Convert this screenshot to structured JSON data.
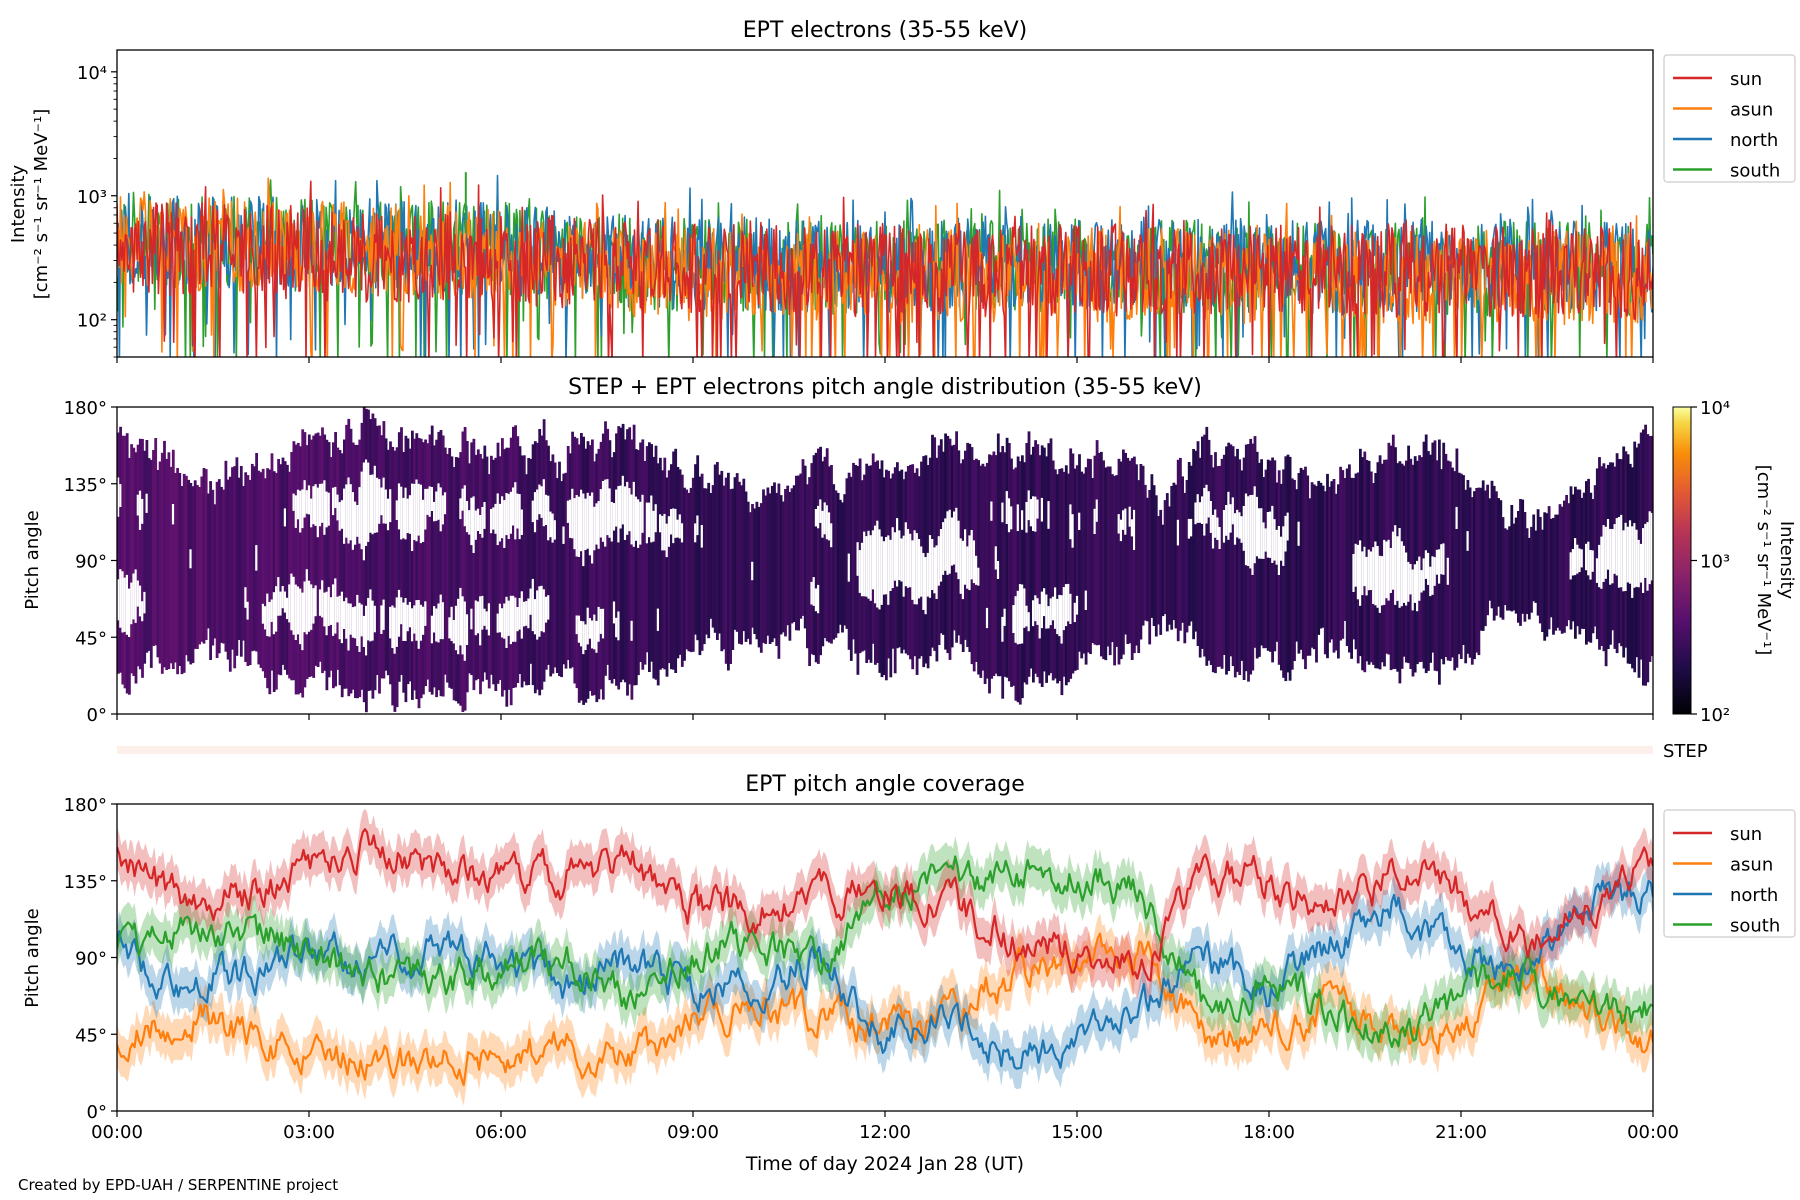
{
  "footer": {
    "credit": "Created by EPD-UAH / SERPENTINE project"
  },
  "colors": {
    "sun": "#d62728",
    "asun": "#ff7f0e",
    "north": "#1f77b4",
    "south": "#2ca02c"
  },
  "chart_data": [
    {
      "type": "line",
      "title": "EPT electrons (35-55 keV)",
      "ylabel": "Intensity",
      "ylabel_units": "[cm⁻² s⁻¹ sr⁻¹ MeV⁻¹]",
      "yscale": "log",
      "ylim": [
        50,
        15000
      ],
      "yticks": [
        {
          "value": 100,
          "label": "10²"
        },
        {
          "value": 1000,
          "label": "10³"
        },
        {
          "value": 10000,
          "label": "10⁴"
        }
      ],
      "xlim_hours": [
        0,
        24
      ],
      "legend": "outside-right",
      "series": [
        {
          "name": "sun",
          "color": "#d62728",
          "x_hours": [
            0,
            2,
            4,
            6,
            8,
            10,
            12,
            14,
            16,
            18,
            20,
            22,
            24
          ],
          "values": [
            380,
            360,
            330,
            310,
            270,
            260,
            250,
            255,
            250,
            245,
            250,
            245,
            240
          ]
        },
        {
          "name": "asun",
          "color": "#ff7f0e",
          "x_hours": [
            0,
            2,
            4,
            6,
            8,
            10,
            12,
            14,
            16,
            18,
            20,
            22,
            24
          ],
          "values": [
            430,
            400,
            370,
            340,
            240,
            230,
            220,
            230,
            230,
            220,
            220,
            220,
            210
          ]
        },
        {
          "name": "north",
          "color": "#1f77b4",
          "x_hours": [
            0,
            2,
            4,
            6,
            8,
            10,
            12,
            14,
            16,
            18,
            20,
            22,
            24
          ],
          "values": [
            460,
            430,
            400,
            380,
            300,
            280,
            270,
            290,
            280,
            270,
            270,
            270,
            260
          ]
        },
        {
          "name": "south",
          "color": "#2ca02c",
          "x_hours": [
            0,
            2,
            4,
            6,
            8,
            10,
            12,
            14,
            16,
            18,
            20,
            22,
            24
          ],
          "values": [
            450,
            420,
            390,
            370,
            290,
            270,
            260,
            280,
            270,
            260,
            260,
            260,
            250
          ]
        }
      ],
      "notable_points": [
        {
          "series": "south",
          "x_hours": 5.45,
          "value": 1550
        }
      ]
    },
    {
      "type": "heatmap",
      "title": "STEP + EPT electrons pitch angle distribution (35-55 keV)",
      "ylabel": "Pitch angle",
      "ylim": [
        0,
        180
      ],
      "yticks": [
        "0°",
        "45°",
        "90°",
        "135°",
        "180°"
      ],
      "colorbar": {
        "label": "Intensity",
        "units": "[cm⁻² s⁻¹ sr⁻¹ MeV⁻¹]",
        "scale": "log",
        "range": [
          100,
          10000
        ],
        "ticks": [
          {
            "value": 100,
            "label": "10²"
          },
          {
            "value": 1000,
            "label": "10³"
          },
          {
            "value": 10000,
            "label": "10⁴"
          }
        ]
      },
      "step_label": "STEP",
      "xlim_hours": [
        0,
        24
      ]
    },
    {
      "type": "line",
      "title": "EPT pitch angle coverage",
      "ylabel": "Pitch angle",
      "ylim": [
        0,
        180
      ],
      "yticks": [
        "0°",
        "45°",
        "90°",
        "135°",
        "180°"
      ],
      "xlabel": "Time of day 2024 Jan 28 (UT)",
      "xticks": [
        "00:00",
        "03:00",
        "06:00",
        "09:00",
        "12:00",
        "15:00",
        "18:00",
        "21:00",
        "00:00"
      ],
      "xlim_hours": [
        0,
        24
      ],
      "legend": "outside-right",
      "series": [
        {
          "name": "sun",
          "color": "#d62728",
          "x_hours": [
            0,
            1,
            2,
            3,
            4,
            5,
            6,
            7,
            8,
            9,
            10,
            11,
            12,
            13,
            14,
            15,
            16,
            17,
            18,
            19,
            20,
            21,
            22,
            23,
            24
          ],
          "values": [
            148,
            125,
            128,
            140,
            155,
            145,
            140,
            138,
            148,
            120,
            118,
            125,
            130,
            125,
            100,
            95,
            85,
            140,
            135,
            115,
            140,
            130,
            95,
            120,
            150
          ]
        },
        {
          "name": "asun",
          "color": "#ff7f0e",
          "x_hours": [
            0,
            1,
            2,
            3,
            4,
            5,
            6,
            7,
            8,
            9,
            10,
            11,
            12,
            13,
            14,
            15,
            16,
            17,
            18,
            19,
            20,
            21,
            22,
            23,
            24
          ],
          "values": [
            35,
            58,
            45,
            32,
            25,
            30,
            35,
            38,
            30,
            55,
            58,
            55,
            50,
            55,
            80,
            88,
            95,
            40,
            45,
            65,
            40,
            50,
            85,
            65,
            40
          ]
        },
        {
          "name": "north",
          "color": "#1f77b4",
          "x_hours": [
            0,
            1,
            2,
            3,
            4,
            5,
            6,
            7,
            8,
            9,
            10,
            11,
            12,
            13,
            14,
            15,
            16,
            17,
            18,
            19,
            20,
            21,
            22,
            23,
            24
          ],
          "values": [
            95,
            75,
            80,
            92,
            85,
            100,
            90,
            70,
            90,
            70,
            75,
            90,
            40,
            55,
            30,
            40,
            60,
            90,
            70,
            100,
            120,
            90,
            80,
            120,
            130
          ]
        },
        {
          "name": "south",
          "color": "#2ca02c",
          "x_hours": [
            0,
            1,
            2,
            3,
            4,
            5,
            6,
            7,
            8,
            9,
            10,
            11,
            12,
            13,
            14,
            15,
            16,
            17,
            18,
            19,
            20,
            21,
            22,
            23,
            24
          ],
          "values": [
            90,
            105,
            108,
            90,
            80,
            75,
            85,
            90,
            65,
            95,
            100,
            85,
            130,
            140,
            140,
            140,
            125,
            60,
            75,
            60,
            40,
            70,
            80,
            55,
            60
          ]
        }
      ]
    }
  ]
}
